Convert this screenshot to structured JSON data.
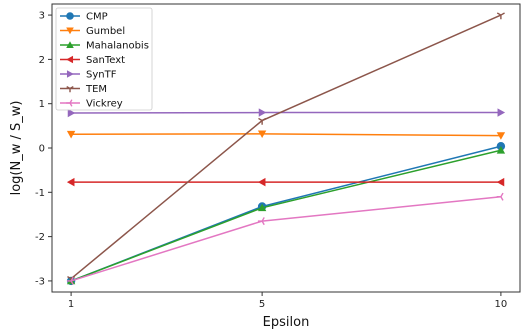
{
  "chart_data": {
    "type": "line",
    "title": "",
    "xlabel": "Epsilon",
    "ylabel": "log(N_w / S_w)",
    "x": [
      1,
      5,
      10
    ],
    "x_ticks": [
      "1",
      "5",
      "10"
    ],
    "xlim": [
      0.6,
      10.4
    ],
    "ylim": [
      -3.25,
      3.25
    ],
    "y_ticks": [
      -3,
      -2,
      -1,
      0,
      1,
      2,
      3
    ],
    "grid": false,
    "legend_position": "top-left",
    "series": [
      {
        "name": "CMP",
        "color": "#1f77b4",
        "marker": "circle",
        "values": [
          -3.0,
          -1.32,
          0.04
        ]
      },
      {
        "name": "Gumbel",
        "color": "#ff7f0e",
        "marker": "triangle-down",
        "values": [
          0.31,
          0.32,
          0.28
        ]
      },
      {
        "name": "Mahalanobis",
        "color": "#2ca02c",
        "marker": "triangle-up",
        "values": [
          -3.0,
          -1.35,
          -0.05
        ]
      },
      {
        "name": "SanText",
        "color": "#d62728",
        "marker": "triangle-left",
        "values": [
          -0.77,
          -0.77,
          -0.77
        ]
      },
      {
        "name": "SynTF",
        "color": "#9467bd",
        "marker": "triangle-right",
        "values": [
          0.79,
          0.8,
          0.8
        ]
      },
      {
        "name": "TEM",
        "color": "#8c564b",
        "marker": "tri-down",
        "values": [
          -2.95,
          0.62,
          3.0
        ]
      },
      {
        "name": "Vickrey",
        "color": "#e377c2",
        "marker": "tri-left",
        "values": [
          -3.0,
          -1.65,
          -1.1
        ]
      }
    ]
  }
}
